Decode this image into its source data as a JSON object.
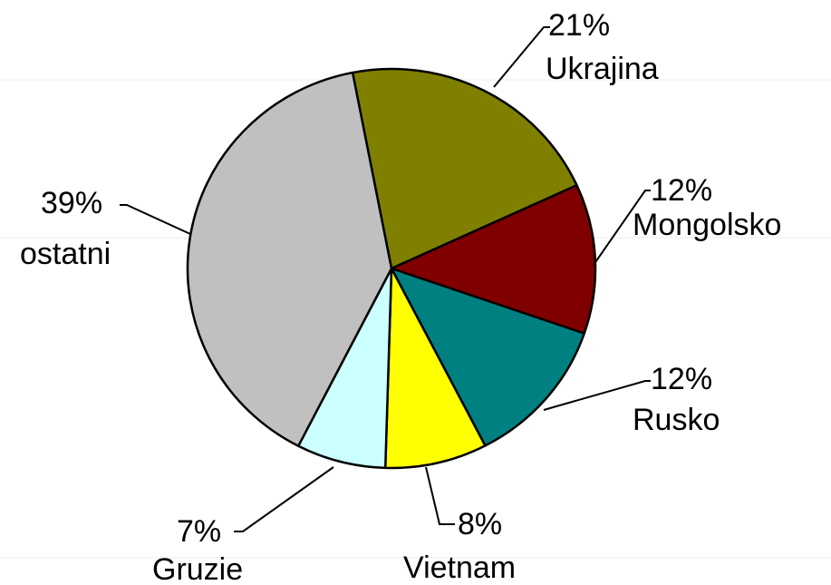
{
  "chart_data": {
    "type": "pie",
    "categories": [
      "Ukrajina",
      "Mongolsko",
      "Rusko",
      "Vietnam",
      "Gruzie",
      "ostatni"
    ],
    "values": [
      21,
      12,
      12,
      8,
      7,
      39
    ],
    "value_labels": [
      "21%",
      "12%",
      "12%",
      "8%",
      "7%",
      "39%"
    ],
    "colors": [
      "#808000",
      "#800000",
      "#008080",
      "#ffff00",
      "#ccffff",
      "#c0c0c0"
    ]
  }
}
